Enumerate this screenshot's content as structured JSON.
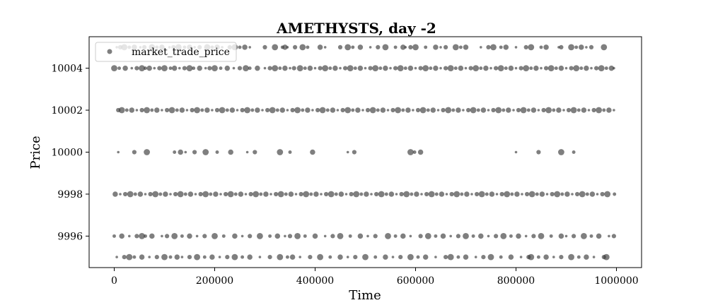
{
  "chart_data": {
    "type": "scatter",
    "title": "AMETHYSTS, day -2",
    "xlabel": "Time",
    "ylabel": "Price",
    "xlim": [
      -50000,
      1050000
    ],
    "ylim": [
      9994.5,
      10005.5
    ],
    "xticks": [
      0,
      200000,
      400000,
      600000,
      800000,
      1000000
    ],
    "xtick_labels": [
      "0",
      "200000",
      "400000",
      "600000",
      "800000",
      "1000000"
    ],
    "yticks": [
      9996,
      9998,
      10000,
      10002,
      10004
    ],
    "ytick_labels": [
      "9996",
      "9998",
      "10000",
      "10002",
      "10004"
    ],
    "grid": false,
    "legend_position": "top-left",
    "series": [
      {
        "name": "market_trade_price",
        "color": "#3a3a3a",
        "alpha": 0.65,
        "marker": "circle",
        "levels": [
          {
            "y": 10005,
            "x": [
              5000,
              12000,
              20000,
              30000,
              40000,
              52000,
              60000,
              75000,
              85000,
              95000,
              110000,
              118000,
              128000,
              140000,
              150000,
              160000,
              170000,
              185000,
              195000,
              205000,
              215000,
              230000,
              240000,
              250000,
              260000,
              270000,
              300000,
              320000,
              335000,
              340000,
              345000,
              360000,
              375000,
              385000,
              410000,
              420000,
              450000,
              465000,
              475000,
              490000,
              510000,
              525000,
              540000,
              560000,
              575000,
              580000,
              590000,
              600000,
              620000,
              640000,
              650000,
              660000,
              680000,
              690000,
              700000,
              730000,
              745000,
              755000,
              770000,
              780000,
              800000,
              820000,
              830000,
              850000,
              860000,
              885000,
              890000,
              910000,
              920000,
              930000,
              940000,
              950000,
              975000
            ]
          },
          {
            "y": 10004,
            "x": [
              0,
              10000,
              22000,
              35000,
              45000,
              55000,
              62000,
              70000,
              80000,
              90000,
              100000,
              112000,
              120000,
              130000,
              140000,
              150000,
              158000,
              170000,
              182000,
              190000,
              200000,
              212000,
              225000,
              238000,
              250000,
              262000,
              270000,
              285000,
              300000,
              310000,
              320000,
              330000,
              340000,
              350000,
              358000,
              370000,
              380000,
              390000,
              400000,
              410000,
              420000,
              430000,
              440000,
              450000,
              460000,
              470000,
              480000,
              490000,
              500000,
              510000,
              520000,
              530000,
              540000,
              550000,
              560000,
              570000,
              580000,
              590000,
              600000,
              610000,
              620000,
              630000,
              640000,
              650000,
              660000,
              670000,
              680000,
              690000,
              700000,
              710000,
              720000,
              730000,
              740000,
              750000,
              760000,
              770000,
              780000,
              790000,
              800000,
              810000,
              820000,
              830000,
              840000,
              850000,
              860000,
              870000,
              880000,
              890000,
              900000,
              910000,
              920000,
              930000,
              940000,
              950000,
              960000,
              970000,
              980000,
              990000,
              995000
            ]
          },
          {
            "y": 10002,
            "x": [
              8000,
              15000,
              25000,
              35000,
              45000,
              55000,
              65000,
              75000,
              85000,
              95000,
              105000,
              115000,
              125000,
              135000,
              145000,
              155000,
              165000,
              175000,
              185000,
              195000,
              205000,
              215000,
              225000,
              235000,
              245000,
              255000,
              265000,
              275000,
              285000,
              295000,
              305000,
              315000,
              325000,
              335000,
              345000,
              355000,
              365000,
              375000,
              385000,
              395000,
              405000,
              415000,
              425000,
              435000,
              445000,
              455000,
              465000,
              475000,
              485000,
              495000,
              505000,
              515000,
              525000,
              535000,
              545000,
              555000,
              565000,
              575000,
              585000,
              595000,
              605000,
              615000,
              625000,
              635000,
              645000,
              655000,
              665000,
              675000,
              685000,
              695000,
              705000,
              715000,
              725000,
              735000,
              745000,
              755000,
              765000,
              775000,
              785000,
              795000,
              805000,
              815000,
              825000,
              835000,
              845000,
              855000,
              865000,
              875000,
              885000,
              895000,
              905000,
              915000,
              925000,
              935000,
              945000,
              955000,
              965000,
              975000,
              985000,
              995000
            ]
          },
          {
            "y": 10000,
            "x": [
              8000,
              40000,
              65000,
              120000,
              132000,
              142000,
              160000,
              182000,
              205000,
              232000,
              265000,
              280000,
              330000,
              350000,
              395000,
              465000,
              478000,
              590000,
              598000,
              610000,
              800000,
              845000,
              890000,
              915000
            ]
          },
          {
            "y": 9998,
            "x": [
              2000,
              12000,
              22000,
              32000,
              42000,
              52000,
              62000,
              72000,
              82000,
              92000,
              102000,
              112000,
              122000,
              132000,
              142000,
              152000,
              162000,
              172000,
              182000,
              192000,
              202000,
              212000,
              222000,
              232000,
              242000,
              252000,
              262000,
              272000,
              282000,
              292000,
              302000,
              312000,
              322000,
              332000,
              342000,
              352000,
              362000,
              372000,
              382000,
              392000,
              402000,
              412000,
              422000,
              432000,
              442000,
              452000,
              462000,
              472000,
              482000,
              492000,
              502000,
              512000,
              522000,
              532000,
              542000,
              552000,
              562000,
              572000,
              582000,
              592000,
              602000,
              612000,
              622000,
              632000,
              642000,
              652000,
              662000,
              672000,
              682000,
              692000,
              702000,
              712000,
              722000,
              732000,
              742000,
              752000,
              762000,
              772000,
              782000,
              792000,
              802000,
              812000,
              822000,
              832000,
              842000,
              852000,
              862000,
              872000,
              882000,
              892000,
              902000,
              912000,
              922000,
              932000,
              942000,
              952000,
              962000,
              972000,
              982000,
              996000
            ]
          },
          {
            "y": 9996,
            "x": [
              0,
              15000,
              30000,
              45000,
              55000,
              62000,
              75000,
              95000,
              105000,
              120000,
              135000,
              150000,
              165000,
              180000,
              200000,
              218000,
              240000,
              255000,
              270000,
              290000,
              310000,
              325000,
              340000,
              350000,
              365000,
              380000,
              400000,
              420000,
              435000,
              450000,
              470000,
              490000,
              505000,
              520000,
              545000,
              560000,
              575000,
              590000,
              610000,
              625000,
              640000,
              655000,
              670000,
              685000,
              700000,
              715000,
              730000,
              745000,
              760000,
              775000,
              790000,
              805000,
              820000,
              835000,
              850000,
              870000,
              890000,
              900000,
              915000,
              935000,
              950000,
              965000,
              985000,
              995000
            ]
          },
          {
            "y": 9995,
            "x": [
              5000,
              20000,
              30000,
              40000,
              55000,
              70000,
              85000,
              100000,
              112000,
              125000,
              135000,
              150000,
              165000,
              180000,
              195000,
              210000,
              225000,
              240000,
              255000,
              270000,
              290000,
              310000,
              330000,
              345000,
              355000,
              370000,
              390000,
              410000,
              430000,
              450000,
              465000,
              480000,
              500000,
              520000,
              540000,
              555000,
              570000,
              590000,
              605000,
              620000,
              640000,
              660000,
              670000,
              685000,
              700000,
              720000,
              735000,
              750000,
              770000,
              790000,
              810000,
              825000,
              830000,
              845000,
              860000,
              875000,
              890000,
              910000,
              925000,
              940000,
              955000,
              975000,
              980000
            ]
          }
        ]
      }
    ]
  }
}
